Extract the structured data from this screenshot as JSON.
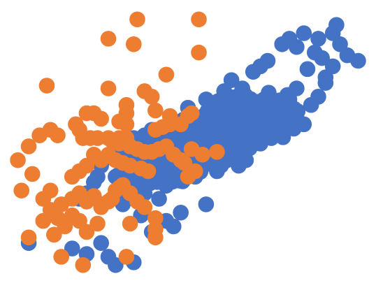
{
  "chart_data": {
    "type": "scatter",
    "xlim": [
      0,
      100
    ],
    "ylim": [
      0,
      100
    ],
    "grid": false,
    "legend": "none",
    "series": [
      {
        "color": "#4472c4",
        "kind": "cloud",
        "center": [
          56,
          52
        ],
        "spread": [
          18,
          7
        ],
        "angle_deg": 32,
        "count": 1600,
        "seed": 11
      },
      {
        "color": "#4472c4",
        "kind": "points",
        "points": [
          [
            91,
            93
          ],
          [
            92,
            86
          ],
          [
            97,
            80
          ],
          [
            80,
            85
          ],
          [
            78,
            88
          ],
          [
            72,
            80
          ],
          [
            68,
            76
          ],
          [
            70,
            78
          ],
          [
            85,
            83
          ],
          [
            87,
            81
          ],
          [
            83,
            77
          ],
          [
            88,
            74
          ],
          [
            76,
            86
          ],
          [
            82,
            90
          ],
          [
            65,
            70
          ],
          [
            60,
            69
          ],
          [
            62,
            73
          ],
          [
            55,
            66
          ],
          [
            50,
            63
          ],
          [
            45,
            58
          ],
          [
            40,
            55
          ],
          [
            38,
            53
          ],
          [
            35,
            52
          ],
          [
            33,
            48
          ],
          [
            30,
            46
          ],
          [
            28,
            45
          ],
          [
            26,
            42
          ],
          [
            25,
            38
          ],
          [
            24,
            36
          ],
          [
            20,
            30
          ],
          [
            22,
            32
          ],
          [
            26,
            28
          ],
          [
            29,
            30
          ],
          [
            33,
            32
          ],
          [
            36,
            34
          ],
          [
            40,
            36
          ],
          [
            44,
            38
          ],
          [
            46,
            40
          ],
          [
            50,
            42
          ],
          [
            55,
            44
          ],
          [
            60,
            46
          ],
          [
            65,
            48
          ],
          [
            70,
            50
          ],
          [
            73,
            52
          ],
          [
            76,
            55
          ],
          [
            79,
            60
          ],
          [
            84,
            64
          ],
          [
            86,
            67
          ],
          [
            82,
            57
          ],
          [
            6,
            14
          ],
          [
            40,
            18
          ],
          [
            46,
            20
          ],
          [
            26,
            14
          ],
          [
            22,
            10
          ],
          [
            18,
            12
          ],
          [
            30,
            6
          ],
          [
            28,
            9
          ],
          [
            35,
            7
          ],
          [
            44,
            22
          ],
          [
            55,
            28
          ],
          [
            48,
            25
          ],
          [
            42,
            30
          ],
          [
            38,
            32
          ],
          [
            32,
            28
          ],
          [
            37,
            24
          ],
          [
            52,
            38
          ],
          [
            58,
            40
          ],
          [
            64,
            42
          ],
          [
            66,
            44
          ],
          [
            68,
            58
          ],
          [
            62,
            55
          ],
          [
            56,
            58
          ],
          [
            50,
            55
          ],
          [
            47,
            52
          ],
          [
            42,
            48
          ],
          [
            36,
            44
          ],
          [
            34,
            40
          ],
          [
            30,
            38
          ],
          [
            78,
            66
          ],
          [
            74,
            64
          ],
          [
            80,
            70
          ],
          [
            88,
            72
          ],
          [
            90,
            78
          ],
          [
            94,
            82
          ],
          [
            86,
            88
          ],
          [
            90,
            90
          ]
        ]
      },
      {
        "color": "#ed7d31",
        "kind": "points",
        "points": [
          [
            36,
            95
          ],
          [
            53,
            95
          ],
          [
            28,
            88
          ],
          [
            35,
            86
          ],
          [
            53,
            83
          ],
          [
            44,
            75
          ],
          [
            11,
            71
          ],
          [
            28,
            70
          ],
          [
            38,
            69
          ],
          [
            40,
            67
          ],
          [
            33,
            64
          ],
          [
            41,
            62
          ],
          [
            51,
            61
          ],
          [
            24,
            61
          ],
          [
            26,
            59
          ],
          [
            22,
            61
          ],
          [
            33,
            61
          ],
          [
            45,
            60
          ],
          [
            50,
            60
          ],
          [
            31,
            58
          ],
          [
            33,
            57
          ],
          [
            48,
            57
          ],
          [
            19,
            57
          ],
          [
            20,
            55
          ],
          [
            14,
            53
          ],
          [
            21,
            52
          ],
          [
            23,
            52
          ],
          [
            25,
            52
          ],
          [
            28,
            52
          ],
          [
            31,
            52
          ],
          [
            33,
            52
          ],
          [
            9,
            53
          ],
          [
            12,
            55
          ],
          [
            41,
            55
          ],
          [
            43,
            56
          ],
          [
            45,
            57
          ],
          [
            29,
            51
          ],
          [
            31,
            50
          ],
          [
            34,
            49
          ],
          [
            36,
            48
          ],
          [
            38,
            47
          ],
          [
            40,
            47
          ],
          [
            42,
            48
          ],
          [
            44,
            49
          ],
          [
            28,
            46
          ],
          [
            30,
            44
          ],
          [
            32,
            43
          ],
          [
            34,
            42
          ],
          [
            37,
            41
          ],
          [
            39,
            40
          ],
          [
            24,
            46
          ],
          [
            26,
            44
          ],
          [
            22,
            42
          ],
          [
            20,
            40
          ],
          [
            18,
            38
          ],
          [
            46,
            46
          ],
          [
            48,
            44
          ],
          [
            51,
            48
          ],
          [
            54,
            46
          ],
          [
            58,
            47
          ],
          [
            6,
            49
          ],
          [
            3,
            44
          ],
          [
            7,
            39
          ],
          [
            4,
            33
          ],
          [
            49,
            43
          ],
          [
            52,
            40
          ],
          [
            50,
            38
          ],
          [
            12,
            33
          ],
          [
            10,
            30
          ],
          [
            15,
            28
          ],
          [
            18,
            30
          ],
          [
            20,
            32
          ],
          [
            22,
            29
          ],
          [
            24,
            31
          ],
          [
            26,
            27
          ],
          [
            28,
            29
          ],
          [
            30,
            33
          ],
          [
            32,
            35
          ],
          [
            34,
            32
          ],
          [
            36,
            29
          ],
          [
            38,
            27
          ],
          [
            12,
            26
          ],
          [
            14,
            23
          ],
          [
            16,
            20
          ],
          [
            18,
            24
          ],
          [
            20,
            22
          ],
          [
            22,
            18
          ],
          [
            25,
            21
          ],
          [
            13,
            17
          ],
          [
            10,
            22
          ],
          [
            34,
            21
          ],
          [
            41,
            19
          ],
          [
            41,
            16
          ],
          [
            41,
            23
          ],
          [
            15,
            9
          ],
          [
            21,
            6
          ],
          [
            33,
            9
          ],
          [
            6,
            16
          ],
          [
            29,
            30
          ],
          [
            31,
            34
          ]
        ]
      }
    ]
  }
}
